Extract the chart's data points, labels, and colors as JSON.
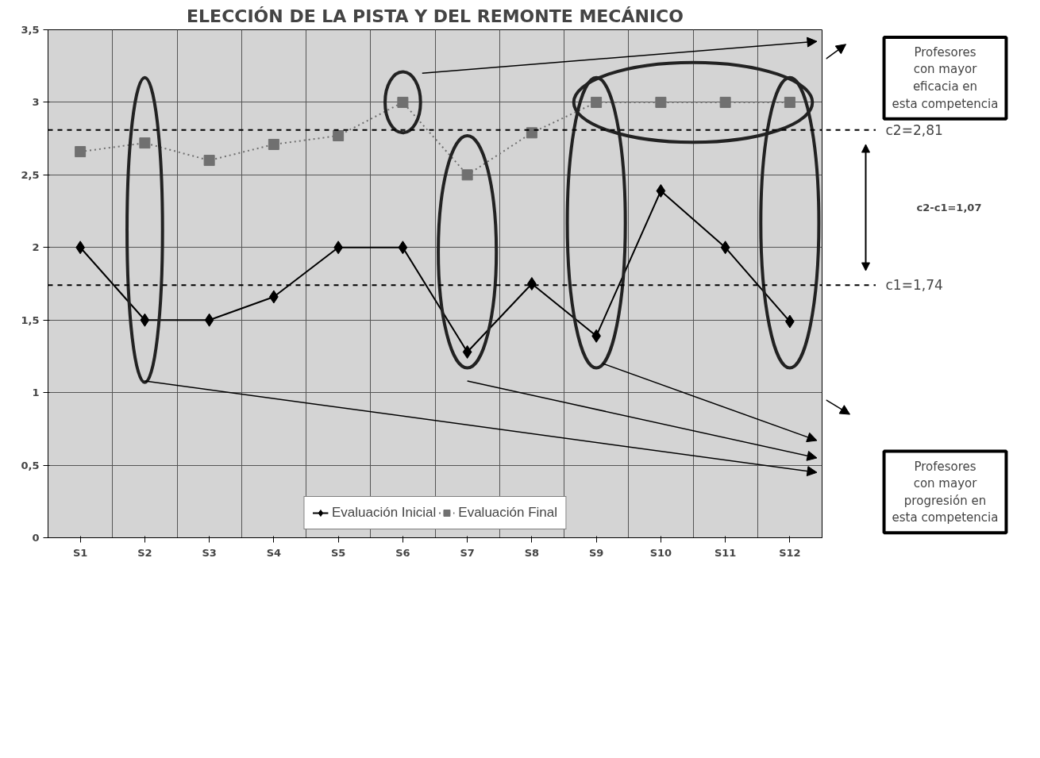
{
  "chart_data": {
    "type": "line",
    "title": "ELECCIÓN DE LA PISTA Y DEL REMONTE MECÁNICO",
    "categories": [
      "S1",
      "S2",
      "S3",
      "S4",
      "S5",
      "S6",
      "S7",
      "S8",
      "S9",
      "S10",
      "S11",
      "S12"
    ],
    "series": [
      {
        "name": "Evaluación Inicial",
        "color": "#000000",
        "marker": "diamond",
        "line_style": "solid",
        "values": [
          2.0,
          1.5,
          1.5,
          1.66,
          2.0,
          2.0,
          1.28,
          1.75,
          1.39,
          2.39,
          2.0,
          1.49
        ]
      },
      {
        "name": "Evaluación Final",
        "color": "#707070",
        "marker": "square",
        "line_style": "dotted",
        "values": [
          2.66,
          2.72,
          2.6,
          2.71,
          2.77,
          3.0,
          2.5,
          2.79,
          3.0,
          3.0,
          3.0,
          3.0
        ]
      }
    ],
    "ylim": [
      0,
      3.5
    ],
    "yticks": [
      0,
      {
        "value": 0.5,
        "label": "0,5"
      },
      1,
      {
        "value": 1.5,
        "label": "1,5"
      },
      2,
      {
        "value": 2.5,
        "label": "2,5"
      },
      3,
      {
        "value": 3.5,
        "label": "3,5"
      }
    ],
    "grid": true,
    "legend": "bottom",
    "ref_lines": [
      {
        "axis": "y",
        "value": 2.81,
        "label": "c2=2,81",
        "color": "#000000",
        "line_style": "dashed"
      },
      {
        "axis": "y",
        "value": 1.74,
        "label": "c1=1,74",
        "color": "#000000",
        "line_style": "dashed"
      }
    ],
    "annotations": [
      "c2-c1=1,07",
      "Profesores con mayor eficacia en esta competencia",
      "Profesores con mayor progresión en esta competencia"
    ]
  }
}
